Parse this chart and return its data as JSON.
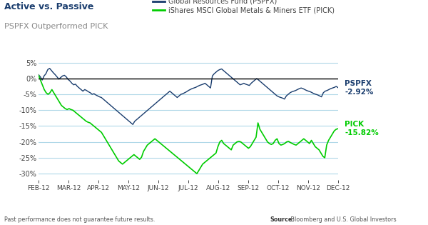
{
  "title_main": "Active vs. Passive",
  "title_sub": "PSPFX Outperformed PICK",
  "legend_entries": [
    "Global Resources Fund (PSPFX)",
    "iShares MSCI Global Metals & Miners ETF (PICK)"
  ],
  "pspfx_color": "#1a3d6e",
  "pick_color": "#00cc00",
  "background_color": "#ffffff",
  "grid_color": "#b0d8e8",
  "ylim": [
    -32,
    7
  ],
  "yticks": [
    5,
    0,
    -5,
    -10,
    -15,
    -20,
    -25,
    -30
  ],
  "xtick_labels": [
    "FEB-12",
    "MAR-12",
    "APR-12",
    "MAY-12",
    "JUN-12",
    "JUL-12",
    "AUG-12",
    "SEP-12",
    "OCT-12",
    "NOV-12",
    "DEC-12"
  ],
  "label_pspfx": "PSPFX\n-2.92%",
  "label_pick": "PICK\n-15.82%",
  "footer_left": "Past performance does not guarantee future results.",
  "footer_source_bold": "Source:",
  "footer_right": " Bloomberg and U.S. Global Investors",
  "pspfx_data": [
    1.2,
    0.5,
    -0.5,
    0.8,
    1.5,
    2.8,
    3.2,
    2.5,
    1.8,
    1.2,
    0.5,
    -0.2,
    0.3,
    0.8,
    1.0,
    0.5,
    -0.3,
    -0.8,
    -1.5,
    -2.0,
    -1.8,
    -2.5,
    -3.0,
    -3.5,
    -4.0,
    -3.5,
    -3.8,
    -4.2,
    -4.5,
    -5.0,
    -4.8,
    -5.2,
    -5.5,
    -5.8,
    -6.0,
    -6.5,
    -7.0,
    -7.5,
    -8.0,
    -8.5,
    -9.0,
    -9.5,
    -10.0,
    -10.5,
    -11.0,
    -11.5,
    -12.0,
    -12.5,
    -13.0,
    -13.5,
    -14.0,
    -14.5,
    -13.5,
    -13.0,
    -12.5,
    -12.0,
    -11.5,
    -11.0,
    -10.5,
    -10.0,
    -9.5,
    -9.0,
    -8.5,
    -8.0,
    -7.5,
    -7.0,
    -6.5,
    -6.0,
    -5.5,
    -5.0,
    -4.5,
    -4.0,
    -4.5,
    -5.0,
    -5.5,
    -6.0,
    -5.5,
    -5.0,
    -4.8,
    -4.5,
    -4.2,
    -3.8,
    -3.5,
    -3.2,
    -3.0,
    -2.8,
    -2.5,
    -2.2,
    -2.0,
    -1.8,
    -1.5,
    -2.0,
    -2.5,
    -3.0,
    0.8,
    1.5,
    2.0,
    2.5,
    2.8,
    3.0,
    2.5,
    2.0,
    1.5,
    1.0,
    0.5,
    0.0,
    -0.5,
    -1.0,
    -1.5,
    -2.0,
    -1.8,
    -1.5,
    -1.8,
    -2.0,
    -2.2,
    -1.5,
    -1.0,
    -0.5,
    0.0,
    -0.5,
    -1.0,
    -1.5,
    -2.0,
    -2.5,
    -3.0,
    -3.5,
    -4.0,
    -4.5,
    -5.0,
    -5.5,
    -5.8,
    -6.0,
    -6.2,
    -6.5,
    -5.5,
    -5.0,
    -4.5,
    -4.2,
    -4.0,
    -3.8,
    -3.5,
    -3.2,
    -3.0,
    -3.2,
    -3.5,
    -3.8,
    -4.0,
    -4.2,
    -4.5,
    -4.8,
    -5.0,
    -5.2,
    -5.5,
    -5.8,
    -4.5,
    -4.0,
    -3.8,
    -3.5,
    -3.2,
    -3.0,
    -2.8,
    -2.5,
    -2.92
  ],
  "pick_data": [
    1.0,
    -0.5,
    -2.0,
    -3.5,
    -4.5,
    -5.0,
    -4.5,
    -3.5,
    -4.5,
    -5.5,
    -6.5,
    -7.5,
    -8.5,
    -9.0,
    -9.5,
    -9.8,
    -9.5,
    -9.8,
    -10.0,
    -10.5,
    -11.0,
    -11.5,
    -12.0,
    -12.5,
    -13.0,
    -13.5,
    -13.8,
    -14.0,
    -14.5,
    -15.0,
    -15.5,
    -16.0,
    -16.5,
    -17.0,
    -18.0,
    -19.0,
    -20.0,
    -21.0,
    -22.0,
    -23.0,
    -24.0,
    -25.0,
    -26.0,
    -26.5,
    -27.0,
    -26.5,
    -26.0,
    -25.5,
    -25.0,
    -24.5,
    -24.0,
    -24.5,
    -25.0,
    -25.5,
    -24.8,
    -23.0,
    -22.0,
    -21.0,
    -20.5,
    -20.0,
    -19.5,
    -19.0,
    -19.5,
    -20.0,
    -20.5,
    -21.0,
    -21.5,
    -22.0,
    -22.5,
    -23.0,
    -23.5,
    -24.0,
    -24.5,
    -25.0,
    -25.5,
    -26.0,
    -26.5,
    -27.0,
    -27.5,
    -28.0,
    -28.5,
    -29.0,
    -29.5,
    -30.0,
    -29.0,
    -28.0,
    -27.0,
    -26.5,
    -26.0,
    -25.5,
    -25.0,
    -24.5,
    -24.0,
    -23.5,
    -21.5,
    -20.0,
    -19.5,
    -20.5,
    -21.0,
    -21.5,
    -22.0,
    -22.5,
    -21.0,
    -20.5,
    -20.0,
    -19.8,
    -20.0,
    -20.5,
    -21.0,
    -21.5,
    -22.0,
    -21.5,
    -20.5,
    -19.5,
    -18.5,
    -14.0,
    -16.0,
    -17.0,
    -18.0,
    -19.0,
    -20.0,
    -20.5,
    -20.8,
    -20.5,
    -19.5,
    -19.0,
    -20.5,
    -21.0,
    -20.8,
    -20.5,
    -20.0,
    -19.8,
    -20.2,
    -20.5,
    -20.8,
    -21.0,
    -20.5,
    -20.0,
    -19.5,
    -19.0,
    -19.5,
    -20.0,
    -20.5,
    -19.5,
    -20.5,
    -21.5,
    -22.0,
    -22.5,
    -23.5,
    -24.5,
    -25.0,
    -21.0,
    -19.5,
    -18.5,
    -17.5,
    -16.5,
    -16.0,
    -15.82
  ]
}
